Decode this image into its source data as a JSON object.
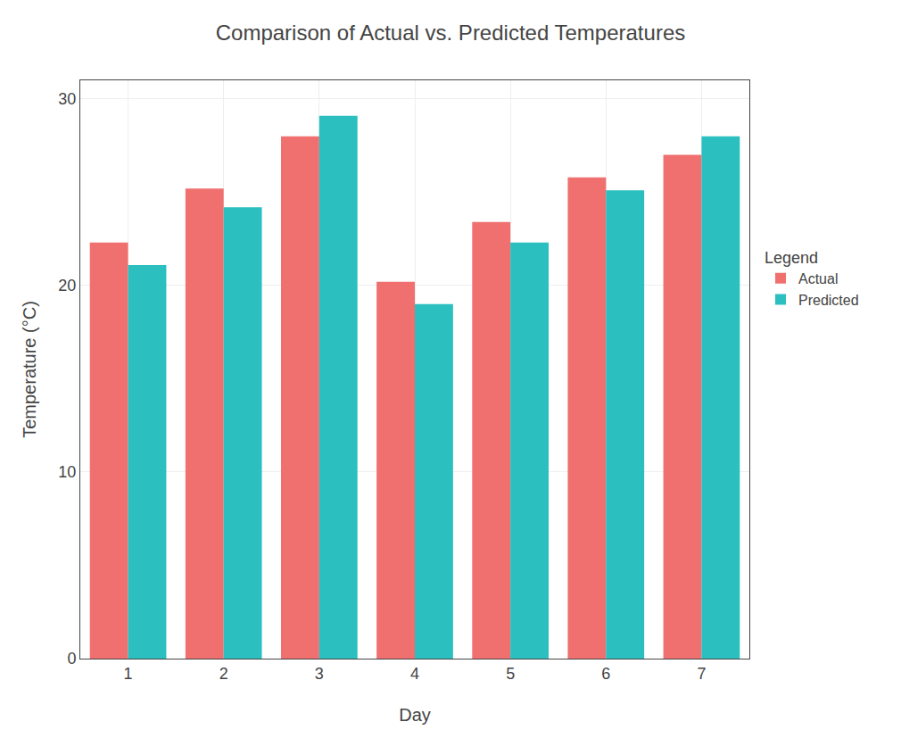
{
  "chart_data": {
    "type": "bar",
    "title": "Comparison of Actual vs. Predicted Temperatures",
    "x_label": "Day",
    "y_label": "Temperature (°C)",
    "categories": [
      "1",
      "2",
      "3",
      "4",
      "5",
      "6",
      "7"
    ],
    "series": [
      {
        "name": "Actual",
        "color": "#F07070",
        "values": [
          22.3,
          25.2,
          28.0,
          20.2,
          23.4,
          25.8,
          27.0
        ]
      },
      {
        "name": "Predicted",
        "color": "#2BBFBF",
        "values": [
          21.1,
          24.2,
          29.1,
          19.0,
          22.3,
          25.1,
          28.0
        ]
      }
    ],
    "ylim": [
      0,
      31
    ],
    "yticks": [
      0,
      10,
      20,
      30
    ],
    "grid": true,
    "legend": "right",
    "legend_title": "Legend"
  }
}
